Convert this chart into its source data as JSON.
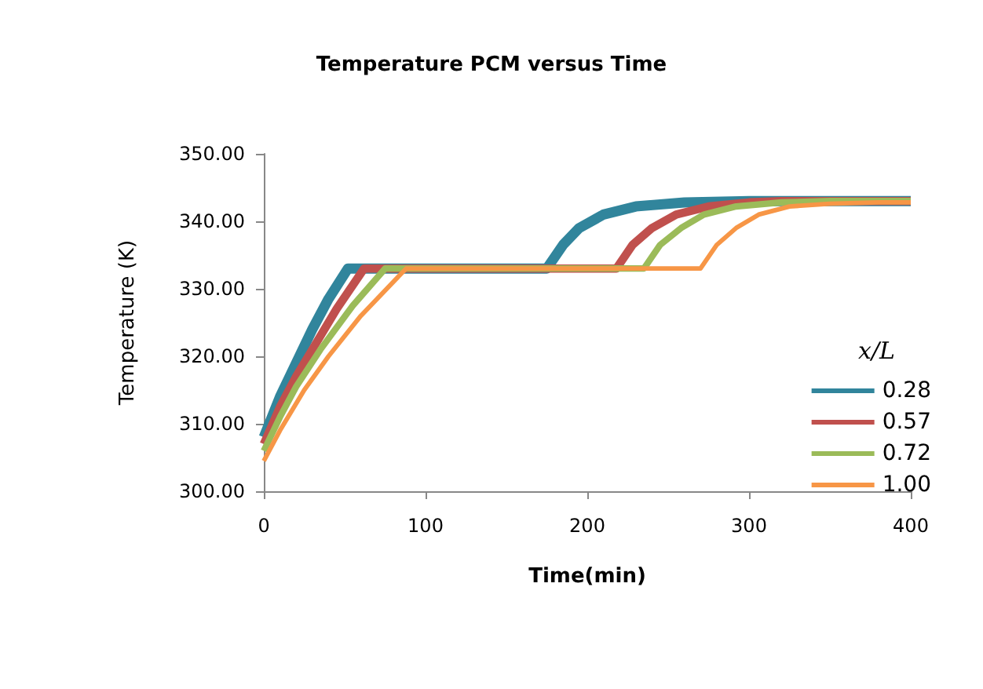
{
  "chart_data": {
    "type": "line",
    "title": "Temperature PCM versus Time",
    "xlabel": "Time(min)",
    "ylabel": "Temperature (K)",
    "legend_title": "x/L",
    "legend": "bottom right",
    "grid": false,
    "marker": "none",
    "line_style": "solid",
    "xlim": [
      0,
      400
    ],
    "xticks": [
      0,
      100,
      200,
      300,
      400
    ],
    "ylim": [
      300,
      350
    ],
    "yticks": [
      {
        "value": 300,
        "label": "300.00"
      },
      {
        "value": 310,
        "label": "310.00"
      },
      {
        "value": 320,
        "label": "320.00"
      },
      {
        "value": 330,
        "label": "330.00"
      },
      {
        "value": 340,
        "label": "340.00"
      },
      {
        "value": 350,
        "label": "350.00"
      }
    ],
    "series": [
      {
        "name": "0.28",
        "color": "#31859c",
        "x": [
          0,
          10,
          20,
          30,
          40,
          52,
          100,
          175,
          185,
          195,
          210,
          230,
          260,
          300,
          400
        ],
        "values": [
          308,
          314,
          319,
          324,
          328.5,
          333,
          333,
          333,
          336.5,
          339,
          341,
          342.2,
          342.8,
          343,
          343
        ]
      },
      {
        "name": "0.57",
        "color": "#c0504d",
        "x": [
          0,
          10,
          20,
          30,
          45,
          62,
          100,
          218,
          228,
          240,
          255,
          275,
          300,
          320,
          400
        ],
        "values": [
          307,
          312.5,
          317,
          321,
          327,
          333,
          333,
          333,
          336.5,
          339,
          341,
          342.2,
          342.8,
          343,
          343
        ]
      },
      {
        "name": "0.72",
        "color": "#9bbb59",
        "x": [
          0,
          10,
          20,
          35,
          55,
          75,
          100,
          235,
          245,
          258,
          272,
          292,
          320,
          350,
          400
        ],
        "values": [
          306,
          311,
          315.5,
          321,
          327.5,
          333,
          333,
          333,
          336.5,
          339,
          341,
          342.2,
          342.8,
          343,
          343
        ]
      },
      {
        "name": "1.00",
        "color": "#f79646",
        "x": [
          0,
          10,
          25,
          40,
          60,
          88,
          100,
          270,
          280,
          292,
          306,
          325,
          350,
          380,
          400
        ],
        "values": [
          304.5,
          309,
          315,
          320,
          326,
          333,
          333,
          333,
          336.5,
          339,
          341,
          342.2,
          342.6,
          342.8,
          342.8
        ]
      }
    ]
  }
}
